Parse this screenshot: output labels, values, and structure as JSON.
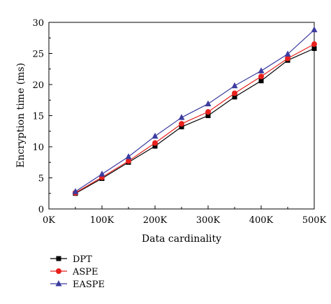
{
  "chart_data": {
    "type": "line",
    "xlabel": "Data cardinality",
    "ylabel": "Encryption time (ms)",
    "x": [
      50000,
      100000,
      150000,
      200000,
      250000,
      300000,
      350000,
      400000,
      450000,
      500000
    ],
    "xlim": [
      0,
      500000
    ],
    "ylim": [
      0,
      30
    ],
    "x_ticks": [
      0,
      100000,
      200000,
      300000,
      400000,
      500000
    ],
    "x_tick_labels": [
      "0K",
      "100K",
      "200K",
      "300K",
      "400K",
      "500K"
    ],
    "y_ticks": [
      0,
      5,
      10,
      15,
      20,
      25,
      30
    ],
    "y_tick_labels": [
      "0",
      "5",
      "10",
      "15",
      "20",
      "25",
      "30"
    ],
    "grid": false,
    "legend_position": "bottom-left, below plot",
    "series": [
      {
        "name": "DPT",
        "color": "#000000",
        "marker": "square",
        "values": [
          2.5,
          4.9,
          7.5,
          10.1,
          13.2,
          15.0,
          18.0,
          20.6,
          23.9,
          25.8
        ]
      },
      {
        "name": "ASPE",
        "color": "#e8211d",
        "marker": "circle",
        "values": [
          2.6,
          5.1,
          7.7,
          10.6,
          13.7,
          15.6,
          18.6,
          21.3,
          24.2,
          26.5
        ]
      },
      {
        "name": "EASPE",
        "color": "#3b3ba0",
        "marker": "triangle",
        "values": [
          2.8,
          5.6,
          8.4,
          11.7,
          14.7,
          16.9,
          19.8,
          22.2,
          24.9,
          28.8
        ]
      }
    ]
  }
}
